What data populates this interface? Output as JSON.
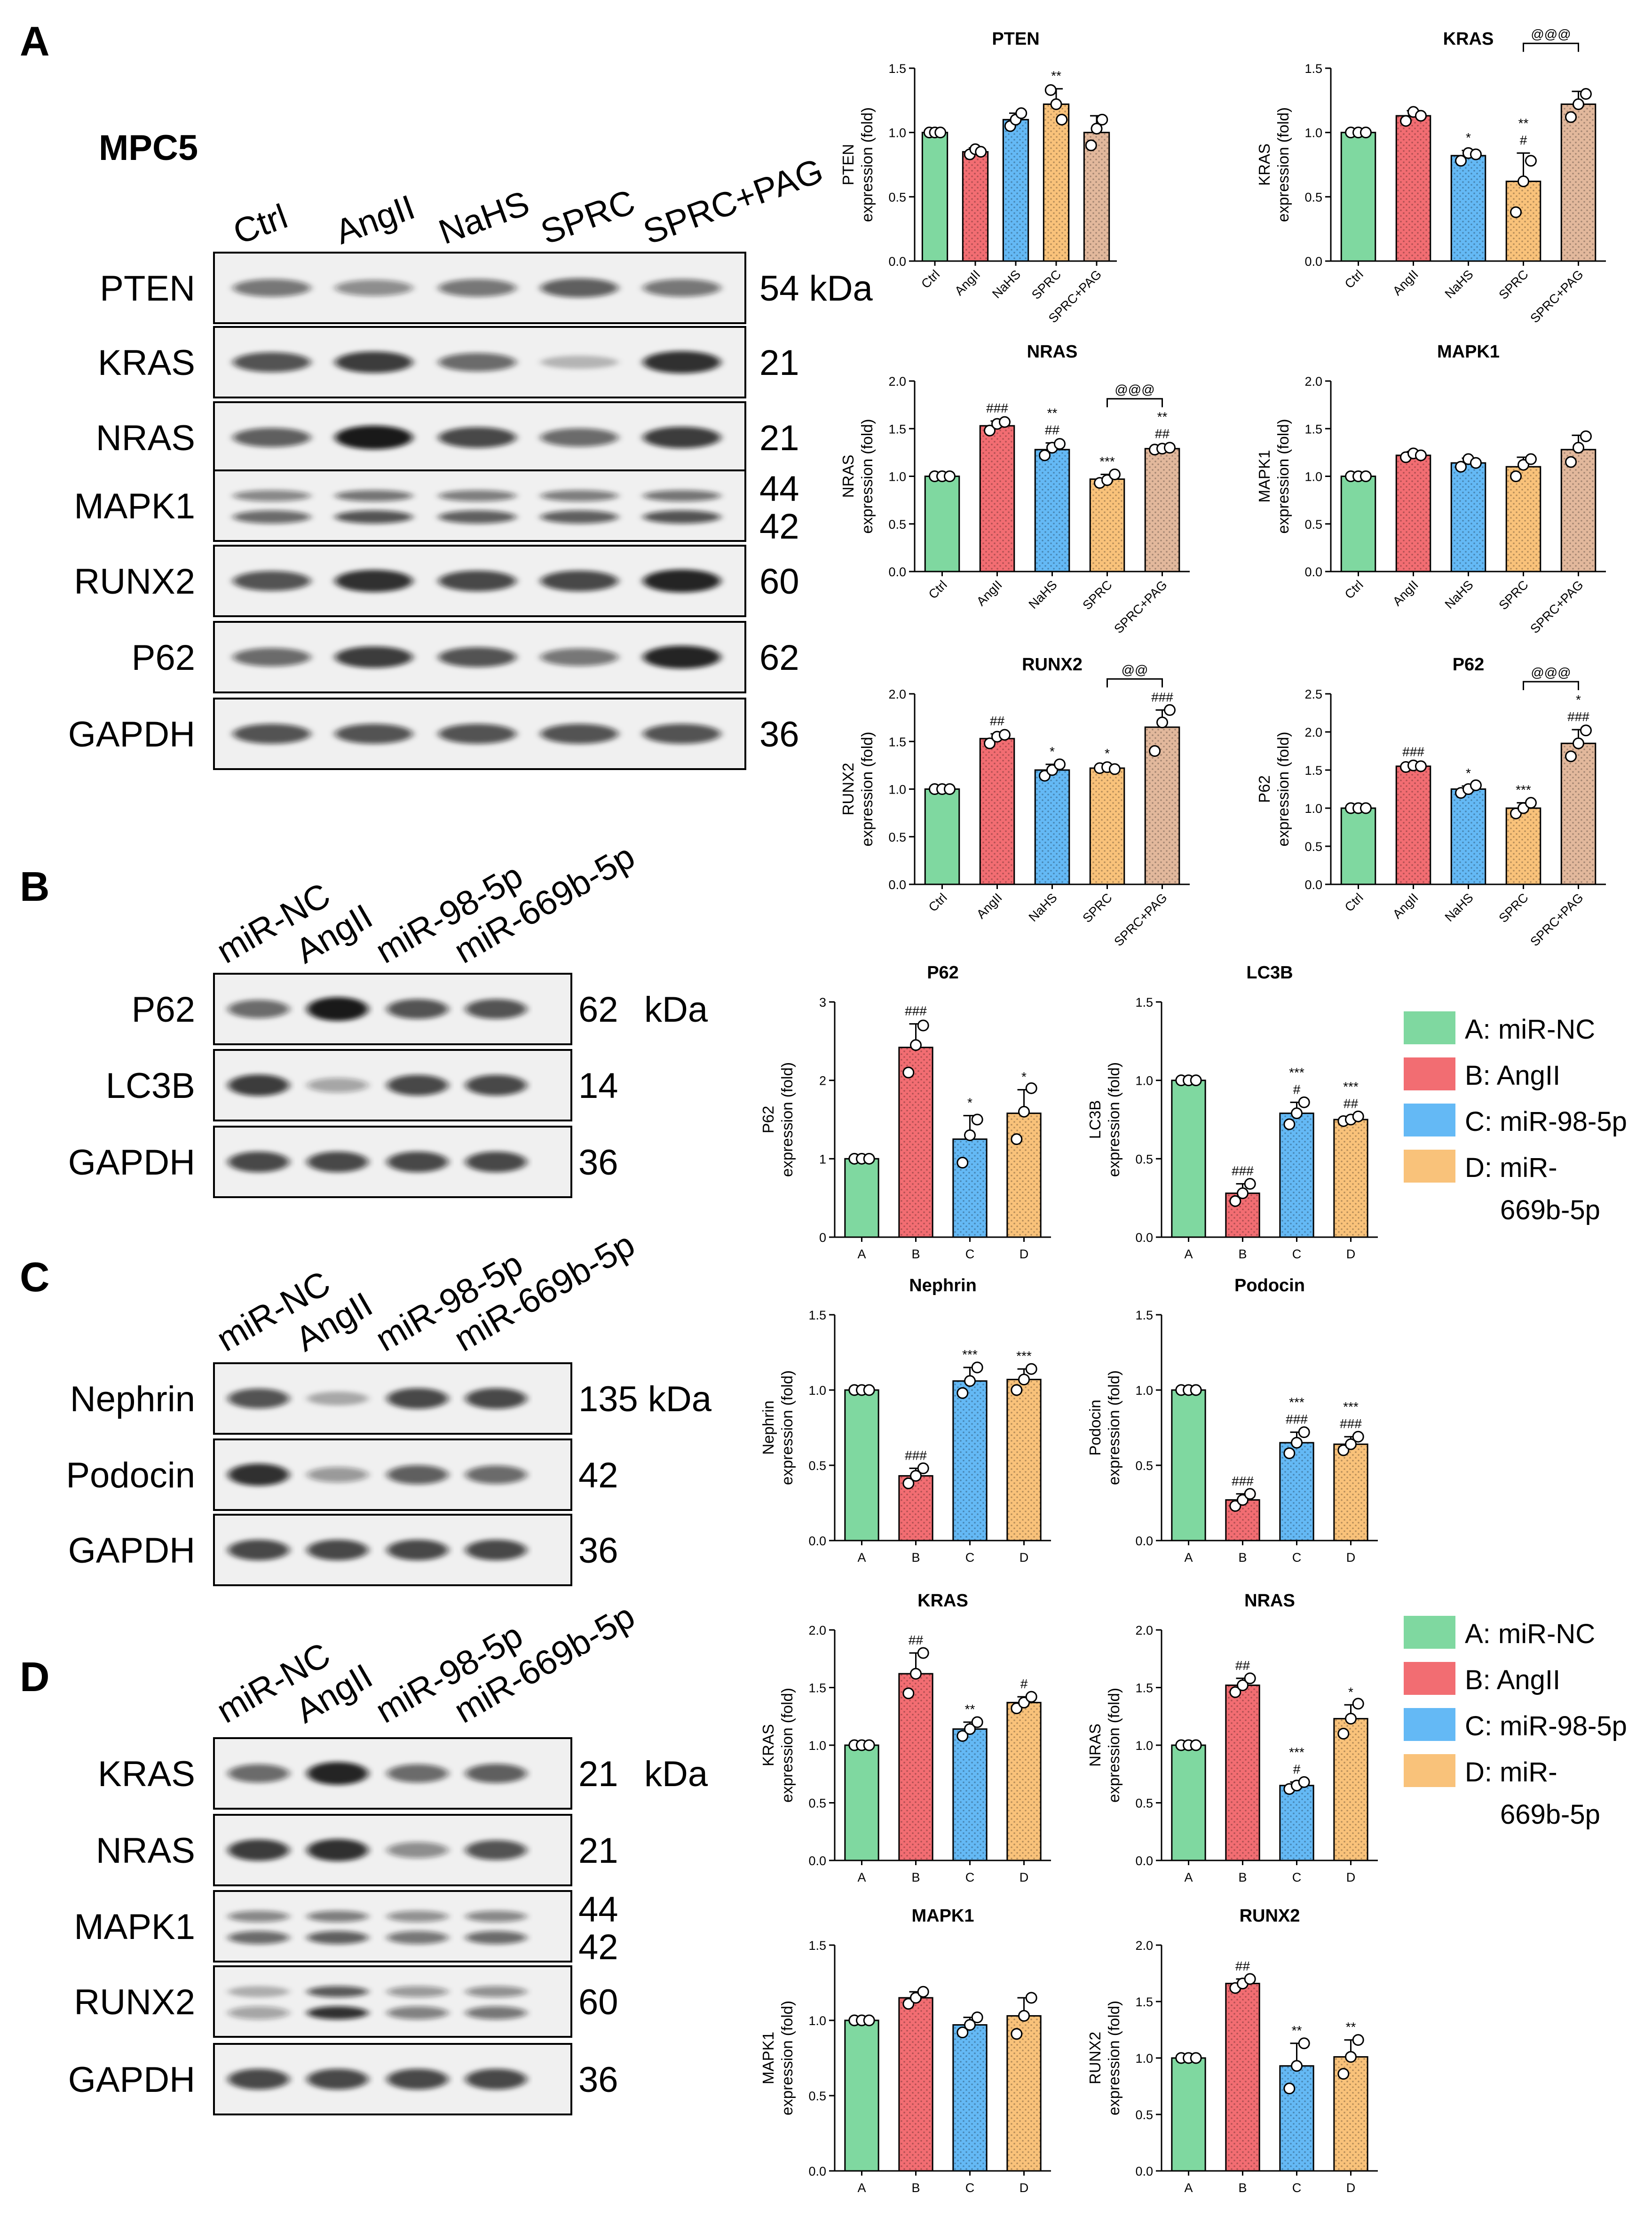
{
  "panels": [
    {
      "letter": "A",
      "cell_line": "MPC5",
      "lanes": [
        "Ctrl",
        "AngII",
        "NaHS",
        "SPRC",
        "SPRC+PAG"
      ],
      "blots": [
        {
          "protein": "PTEN",
          "kda": [
            "54 kDa"
          ],
          "band_intensity": [
            0.55,
            0.45,
            0.55,
            0.65,
            0.55
          ],
          "double": false
        },
        {
          "protein": "KRAS",
          "kda": [
            "21"
          ],
          "band_intensity": [
            0.7,
            0.8,
            0.6,
            0.25,
            0.85
          ],
          "double": false
        },
        {
          "protein": "NRAS",
          "kda": [
            "21"
          ],
          "band_intensity": [
            0.65,
            0.95,
            0.75,
            0.6,
            0.8
          ],
          "double": false
        },
        {
          "protein": "MAPK1",
          "kda": [
            "44",
            "42"
          ],
          "band_intensity": [
            0.6,
            0.7,
            0.65,
            0.65,
            0.7
          ],
          "double": true
        },
        {
          "protein": "RUNX2",
          "kda": [
            "60"
          ],
          "band_intensity": [
            0.7,
            0.85,
            0.75,
            0.75,
            0.9
          ],
          "double": false
        },
        {
          "protein": "P62",
          "kda": [
            "62"
          ],
          "band_intensity": [
            0.6,
            0.8,
            0.7,
            0.55,
            0.9
          ],
          "double": false
        },
        {
          "protein": "GAPDH",
          "kda": [
            "36"
          ],
          "band_intensity": [
            0.7,
            0.7,
            0.7,
            0.7,
            0.7
          ],
          "double": false
        }
      ]
    },
    {
      "letter": "B",
      "lanes": [
        "miR-NC",
        "AngII",
        "miR-98-5p",
        "miR-669b-5p"
      ],
      "blots": [
        {
          "protein": "P62",
          "kda": [
            "62",
            "kDa"
          ],
          "band_intensity": [
            0.6,
            0.95,
            0.7,
            0.7
          ],
          "double": false
        },
        {
          "protein": "LC3B",
          "kda": [
            "14"
          ],
          "band_intensity": [
            0.8,
            0.35,
            0.75,
            0.75
          ],
          "double": false
        },
        {
          "protein": "GAPDH",
          "kda": [
            "36"
          ],
          "band_intensity": [
            0.75,
            0.75,
            0.75,
            0.75
          ],
          "double": false
        }
      ]
    },
    {
      "letter": "C",
      "lanes": [
        "miR-NC",
        "AngII",
        "miR-98-5p",
        "miR-669b-5p"
      ],
      "blots": [
        {
          "protein": "Nephrin",
          "kda": [
            "135 kDa"
          ],
          "band_intensity": [
            0.7,
            0.3,
            0.75,
            0.75
          ],
          "double": false
        },
        {
          "protein": "Podocin",
          "kda": [
            "42"
          ],
          "band_intensity": [
            0.85,
            0.4,
            0.65,
            0.6
          ],
          "double": false
        },
        {
          "protein": "GAPDH",
          "kda": [
            "36"
          ],
          "band_intensity": [
            0.75,
            0.75,
            0.75,
            0.75
          ],
          "double": false
        }
      ]
    },
    {
      "letter": "D",
      "lanes": [
        "miR-NC",
        "AngII",
        "miR-98-5p",
        "miR-669b-5p"
      ],
      "blots": [
        {
          "protein": "KRAS",
          "kda": [
            "21",
            "kDa"
          ],
          "band_intensity": [
            0.6,
            0.9,
            0.6,
            0.65
          ],
          "double": false
        },
        {
          "protein": "NRAS",
          "kda": [
            "21"
          ],
          "band_intensity": [
            0.8,
            0.85,
            0.45,
            0.7
          ],
          "double": false
        },
        {
          "protein": "MAPK1",
          "kda": [
            "44",
            "42"
          ],
          "band_intensity": [
            0.6,
            0.65,
            0.55,
            0.6
          ],
          "double": true
        },
        {
          "protein": "RUNX2",
          "kda": [
            "60"
          ],
          "band_intensity": [
            0.35,
            0.85,
            0.5,
            0.55
          ],
          "double": true
        },
        {
          "protein": "GAPDH",
          "kda": [
            "36"
          ],
          "band_intensity": [
            0.75,
            0.75,
            0.75,
            0.75
          ],
          "double": false
        }
      ]
    }
  ],
  "legend": {
    "items": [
      {
        "line1": "A: miR-NC",
        "line2": "",
        "color": "#7fd8a0"
      },
      {
        "line1": "B: AngII",
        "line2": "",
        "color": "#f26d72"
      },
      {
        "line1": "C: miR-98-5p",
        "line2": "",
        "color": "#64b9f5"
      },
      {
        "line1": "D: miR-",
        "line2": "669b-5p",
        "color": "#f9c27a"
      }
    ]
  },
  "chart_data": [
    {
      "type": "bar",
      "title": "PTEN",
      "ylabel": [
        "PTEN",
        "expression (fold)"
      ],
      "categories": [
        "Ctrl",
        "AngII",
        "NaHS",
        "SPRC",
        "SPRC+PAG"
      ],
      "values": [
        1.0,
        0.85,
        1.1,
        1.22,
        1.0
      ],
      "err": [
        0.0,
        0.03,
        0.05,
        0.12,
        0.13
      ],
      "points": [
        [
          1.0,
          1.0,
          1.0
        ],
        [
          0.83,
          0.87,
          0.85
        ],
        [
          1.05,
          1.1,
          1.15
        ],
        [
          1.33,
          1.22,
          1.1
        ],
        [
          0.9,
          1.03,
          1.1
        ]
      ],
      "ylim": [
        0,
        1.5
      ],
      "yticks": [
        0.0,
        0.5,
        1.0,
        1.5
      ],
      "sig": [
        "",
        "",
        "",
        "**",
        ""
      ],
      "bracket": null
    },
    {
      "type": "bar",
      "title": "KRAS",
      "ylabel": [
        "KRAS",
        "expression (fold)"
      ],
      "categories": [
        "Ctrl",
        "AngII",
        "NaHS",
        "SPRC",
        "SPRC+PAG"
      ],
      "values": [
        1.0,
        1.13,
        0.82,
        0.62,
        1.22
      ],
      "err": [
        0.0,
        0.04,
        0.04,
        0.22,
        0.1
      ],
      "points": [
        [
          1.0,
          1.0,
          1.0
        ],
        [
          1.09,
          1.16,
          1.13
        ],
        [
          0.78,
          0.84,
          0.83
        ],
        [
          0.38,
          0.62,
          0.78
        ],
        [
          1.12,
          1.22,
          1.3
        ]
      ],
      "ylim": [
        0,
        1.5
      ],
      "yticks": [
        0.0,
        0.5,
        1.0,
        1.5
      ],
      "sig": [
        "",
        "",
        "*",
        "**\n#",
        ""
      ],
      "bracket": {
        "from": 3,
        "to": 4,
        "label": "@@@"
      }
    },
    {
      "type": "bar",
      "title": "NRAS",
      "ylabel": [
        "NRAS",
        "expression (fold)"
      ],
      "categories": [
        "Ctrl",
        "AngII",
        "NaHS",
        "SPRC",
        "SPRC+PAG"
      ],
      "values": [
        1.0,
        1.53,
        1.28,
        0.97,
        1.29
      ],
      "err": [
        0.0,
        0.05,
        0.07,
        0.05,
        0.02
      ],
      "points": [
        [
          1.0,
          1.0,
          1.0
        ],
        [
          1.48,
          1.55,
          1.57
        ],
        [
          1.22,
          1.3,
          1.34
        ],
        [
          0.93,
          0.96,
          1.02
        ],
        [
          1.28,
          1.29,
          1.3
        ]
      ],
      "ylim": [
        0,
        2.0
      ],
      "yticks": [
        0.0,
        0.5,
        1.0,
        1.5,
        2.0
      ],
      "sig": [
        "",
        "###",
        "**\n##",
        "***",
        "**\n##"
      ],
      "bracket": {
        "from": 3,
        "to": 4,
        "label": "@@@"
      }
    },
    {
      "type": "bar",
      "title": "MAPK1",
      "ylabel": [
        "MAPK1",
        "expression (fold)"
      ],
      "categories": [
        "Ctrl",
        "AngII",
        "NaHS",
        "SPRC",
        "SPRC+PAG"
      ],
      "values": [
        1.0,
        1.22,
        1.14,
        1.1,
        1.28
      ],
      "err": [
        0.0,
        0.04,
        0.05,
        0.1,
        0.15
      ],
      "points": [
        [
          1.0,
          1.0,
          1.0
        ],
        [
          1.2,
          1.24,
          1.22
        ],
        [
          1.1,
          1.18,
          1.14
        ],
        [
          1.0,
          1.12,
          1.18
        ],
        [
          1.15,
          1.3,
          1.42
        ]
      ],
      "ylim": [
        0,
        2.0
      ],
      "yticks": [
        0.0,
        0.5,
        1.0,
        1.5,
        2.0
      ],
      "sig": [
        "",
        "",
        "",
        "",
        ""
      ],
      "bracket": null
    },
    {
      "type": "bar",
      "title": "RUNX2",
      "ylabel": [
        "RUNX2",
        "expression (fold)"
      ],
      "categories": [
        "Ctrl",
        "AngII",
        "NaHS",
        "SPRC",
        "SPRC+PAG"
      ],
      "values": [
        1.0,
        1.53,
        1.2,
        1.22,
        1.65
      ],
      "err": [
        0.0,
        0.05,
        0.06,
        0.02,
        0.18
      ],
      "points": [
        [
          1.0,
          1.0,
          1.0
        ],
        [
          1.48,
          1.55,
          1.57
        ],
        [
          1.14,
          1.2,
          1.26
        ],
        [
          1.22,
          1.23,
          1.21
        ],
        [
          1.4,
          1.7,
          1.83
        ]
      ],
      "ylim": [
        0,
        2.0
      ],
      "yticks": [
        0.0,
        0.5,
        1.0,
        1.5,
        2.0
      ],
      "sig": [
        "",
        "##",
        "*",
        "*",
        "###"
      ],
      "bracket": {
        "from": 3,
        "to": 4,
        "label": "@@"
      }
    },
    {
      "type": "bar",
      "title": "P62",
      "ylabel": [
        "P62",
        "expression (fold)"
      ],
      "categories": [
        "Ctrl",
        "AngII",
        "NaHS",
        "SPRC",
        "SPRC+PAG"
      ],
      "values": [
        1.0,
        1.55,
        1.25,
        1.0,
        1.85
      ],
      "err": [
        0.0,
        0.02,
        0.04,
        0.07,
        0.18
      ],
      "points": [
        [
          1.0,
          1.0,
          1.0
        ],
        [
          1.54,
          1.56,
          1.55
        ],
        [
          1.2,
          1.25,
          1.3
        ],
        [
          0.93,
          1.0,
          1.07
        ],
        [
          1.68,
          1.85,
          2.02
        ]
      ],
      "ylim": [
        0,
        2.5
      ],
      "yticks": [
        0.0,
        0.5,
        1.0,
        1.5,
        2.0,
        2.5
      ],
      "sig": [
        "",
        "###",
        "*",
        "***",
        "*\n###"
      ],
      "bracket": {
        "from": 3,
        "to": 4,
        "label": "@@@"
      }
    },
    {
      "type": "bar",
      "title": "P62",
      "ylabel": [
        "P62",
        "expression (fold)"
      ],
      "categories": [
        "A",
        "B",
        "C",
        "D"
      ],
      "values": [
        1.0,
        2.42,
        1.25,
        1.58
      ],
      "err": [
        0.0,
        0.3,
        0.3,
        0.3
      ],
      "points": [
        [
          1.0,
          1.0,
          1.0
        ],
        [
          2.1,
          2.45,
          2.7
        ],
        [
          0.95,
          1.3,
          1.5
        ],
        [
          1.25,
          1.6,
          1.9
        ]
      ],
      "ylim": [
        0,
        3
      ],
      "yticks": [
        0,
        1,
        2,
        3
      ],
      "sig": [
        "",
        "###",
        "*",
        "*"
      ],
      "bracket": null
    },
    {
      "type": "bar",
      "title": "LC3B",
      "ylabel": [
        "LC3B",
        "expression (fold)"
      ],
      "categories": [
        "A",
        "B",
        "C",
        "D"
      ],
      "values": [
        1.0,
        0.28,
        0.79,
        0.75
      ],
      "err": [
        0.0,
        0.06,
        0.07,
        0.02
      ],
      "points": [
        [
          1.0,
          1.0,
          1.0
        ],
        [
          0.23,
          0.28,
          0.34
        ],
        [
          0.72,
          0.79,
          0.86
        ],
        [
          0.74,
          0.75,
          0.77
        ]
      ],
      "ylim": [
        0,
        1.5
      ],
      "yticks": [
        0.0,
        0.5,
        1.0,
        1.5
      ],
      "sig": [
        "",
        "###",
        "***\n#",
        "***\n##"
      ],
      "bracket": null
    },
    {
      "type": "bar",
      "title": "Nephrin",
      "ylabel": [
        "Nephrin",
        "expression (fold)"
      ],
      "categories": [
        "A",
        "B",
        "C",
        "D"
      ],
      "values": [
        1.0,
        0.43,
        1.06,
        1.07
      ],
      "err": [
        0.0,
        0.05,
        0.09,
        0.07
      ],
      "points": [
        [
          1.0,
          1.0,
          1.0
        ],
        [
          0.38,
          0.43,
          0.48
        ],
        [
          0.98,
          1.06,
          1.15
        ],
        [
          1.0,
          1.07,
          1.14
        ]
      ],
      "ylim": [
        0,
        1.5
      ],
      "yticks": [
        0.0,
        0.5,
        1.0,
        1.5
      ],
      "sig": [
        "",
        "###",
        "***",
        "***"
      ],
      "bracket": null
    },
    {
      "type": "bar",
      "title": "Podocin",
      "ylabel": [
        "Podocin",
        "expression (fold)"
      ],
      "categories": [
        "A",
        "B",
        "C",
        "D"
      ],
      "values": [
        1.0,
        0.27,
        0.65,
        0.64
      ],
      "err": [
        0.0,
        0.04,
        0.07,
        0.05
      ],
      "points": [
        [
          1.0,
          1.0,
          1.0
        ],
        [
          0.23,
          0.27,
          0.31
        ],
        [
          0.58,
          0.65,
          0.72
        ],
        [
          0.6,
          0.64,
          0.69
        ]
      ],
      "ylim": [
        0,
        1.5
      ],
      "yticks": [
        0.0,
        0.5,
        1.0,
        1.5
      ],
      "sig": [
        "",
        "###",
        "***\n###",
        "***\n###"
      ],
      "bracket": null
    },
    {
      "type": "bar",
      "title": "KRAS",
      "ylabel": [
        "KRAS",
        "expression (fold)"
      ],
      "categories": [
        "A",
        "B",
        "C",
        "D"
      ],
      "values": [
        1.0,
        1.62,
        1.14,
        1.37
      ],
      "err": [
        0.0,
        0.18,
        0.06,
        0.05
      ],
      "points": [
        [
          1.0,
          1.0,
          1.0
        ],
        [
          1.45,
          1.62,
          1.8
        ],
        [
          1.08,
          1.14,
          1.2
        ],
        [
          1.32,
          1.37,
          1.42
        ]
      ],
      "ylim": [
        0,
        2.0
      ],
      "yticks": [
        0.0,
        0.5,
        1.0,
        1.5,
        2.0
      ],
      "sig": [
        "",
        "##",
        "**",
        "#"
      ],
      "bracket": null
    },
    {
      "type": "bar",
      "title": "NRAS",
      "ylabel": [
        "NRAS",
        "expression (fold)"
      ],
      "categories": [
        "A",
        "B",
        "C",
        "D"
      ],
      "values": [
        1.0,
        1.52,
        0.65,
        1.23
      ],
      "err": [
        0.0,
        0.06,
        0.03,
        0.12
      ],
      "points": [
        [
          1.0,
          1.0,
          1.0
        ],
        [
          1.46,
          1.52,
          1.58
        ],
        [
          0.62,
          0.65,
          0.68
        ],
        [
          1.1,
          1.23,
          1.36
        ]
      ],
      "ylim": [
        0,
        2.0
      ],
      "yticks": [
        0.0,
        0.5,
        1.0,
        1.5,
        2.0
      ],
      "sig": [
        "",
        "##",
        "***\n#",
        "*"
      ],
      "bracket": null
    },
    {
      "type": "bar",
      "title": "MAPK1",
      "ylabel": [
        "MAPK1",
        "expression (fold)"
      ],
      "categories": [
        "A",
        "B",
        "C",
        "D"
      ],
      "values": [
        1.0,
        1.15,
        0.97,
        1.03
      ],
      "err": [
        0.0,
        0.04,
        0.05,
        0.12
      ],
      "points": [
        [
          1.0,
          1.0,
          1.0
        ],
        [
          1.11,
          1.15,
          1.19
        ],
        [
          0.92,
          0.97,
          1.02
        ],
        [
          0.91,
          1.03,
          1.15
        ]
      ],
      "ylim": [
        0,
        1.5
      ],
      "yticks": [
        0.0,
        0.5,
        1.0,
        1.5
      ],
      "sig": [
        "",
        "",
        "",
        ""
      ],
      "bracket": null
    },
    {
      "type": "bar",
      "title": "RUNX2",
      "ylabel": [
        "RUNX2",
        "expression (fold)"
      ],
      "categories": [
        "A",
        "B",
        "C",
        "D"
      ],
      "values": [
        1.0,
        1.66,
        0.93,
        1.01
      ],
      "err": [
        0.0,
        0.04,
        0.2,
        0.15
      ],
      "points": [
        [
          1.0,
          1.0,
          1.0
        ],
        [
          1.62,
          1.66,
          1.7
        ],
        [
          0.73,
          0.93,
          1.13
        ],
        [
          0.86,
          1.01,
          1.16
        ]
      ],
      "ylim": [
        0,
        2.0
      ],
      "yticks": [
        0.0,
        0.5,
        1.0,
        1.5,
        2.0
      ],
      "sig": [
        "",
        "##",
        "**",
        "**"
      ],
      "bracket": null
    }
  ]
}
